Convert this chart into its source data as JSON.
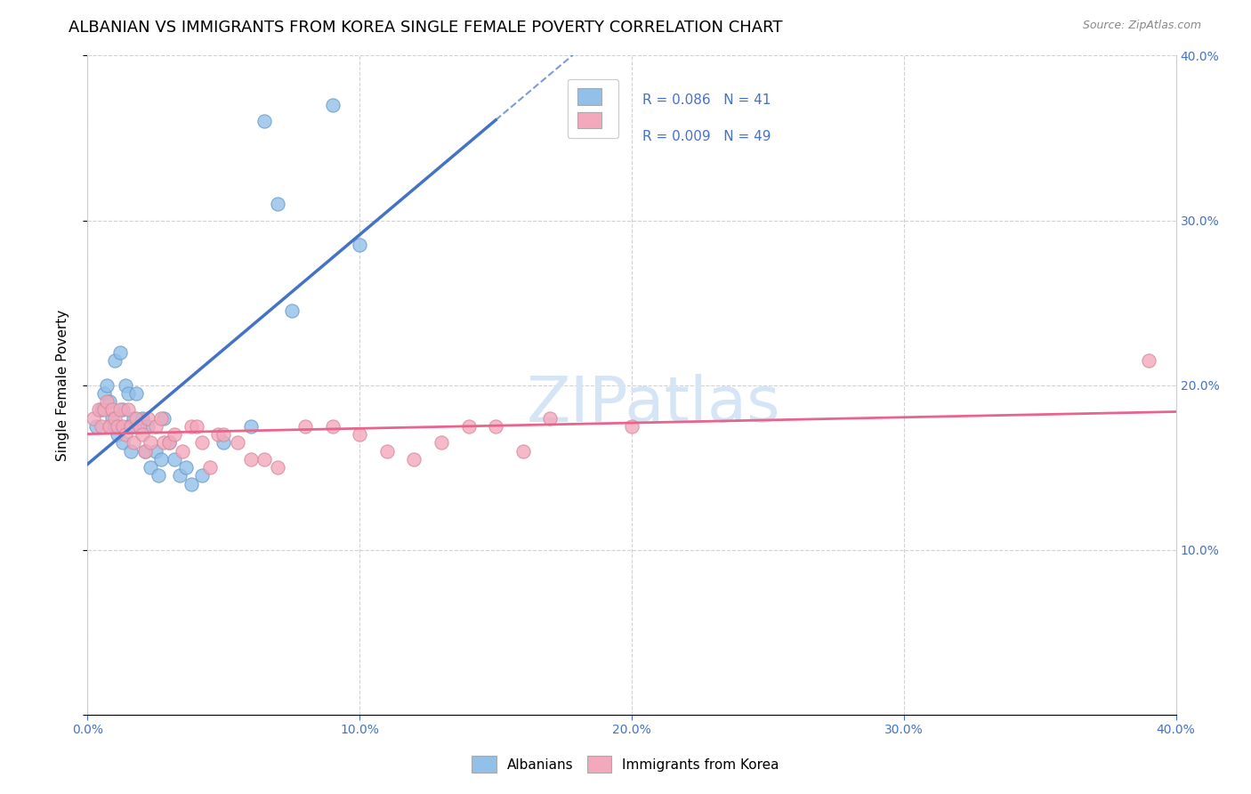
{
  "title": "ALBANIAN VS IMMIGRANTS FROM KOREA SINGLE FEMALE POVERTY CORRELATION CHART",
  "source": "Source: ZipAtlas.com",
  "ylabel": "Single Female Poverty",
  "xlim": [
    0.0,
    0.4
  ],
  "ylim": [
    0.0,
    0.4
  ],
  "legend_r1": "R = 0.086",
  "legend_n1": "N = 41",
  "legend_r2": "R = 0.009",
  "legend_n2": "N = 49",
  "color_albanians": "#92C0E8",
  "color_korea": "#F4A8BC",
  "color_line_albanians": "#4472C4",
  "color_line_korea": "#E8648C",
  "albanians_x": [
    0.003,
    0.005,
    0.006,
    0.007,
    0.008,
    0.008,
    0.009,
    0.01,
    0.01,
    0.011,
    0.012,
    0.013,
    0.013,
    0.014,
    0.015,
    0.015,
    0.016,
    0.017,
    0.018,
    0.019,
    0.02,
    0.021,
    0.022,
    0.023,
    0.025,
    0.026,
    0.027,
    0.028,
    0.03,
    0.032,
    0.034,
    0.036,
    0.038,
    0.042,
    0.05,
    0.06,
    0.065,
    0.07,
    0.075,
    0.09,
    0.1
  ],
  "albanians_y": [
    0.175,
    0.185,
    0.195,
    0.2,
    0.19,
    0.175,
    0.18,
    0.175,
    0.215,
    0.17,
    0.22,
    0.185,
    0.165,
    0.2,
    0.195,
    0.175,
    0.16,
    0.18,
    0.195,
    0.175,
    0.18,
    0.16,
    0.175,
    0.15,
    0.16,
    0.145,
    0.155,
    0.18,
    0.165,
    0.155,
    0.145,
    0.15,
    0.14,
    0.145,
    0.165,
    0.175,
    0.36,
    0.31,
    0.245,
    0.37,
    0.285
  ],
  "korea_x": [
    0.002,
    0.004,
    0.005,
    0.006,
    0.007,
    0.008,
    0.009,
    0.01,
    0.011,
    0.012,
    0.013,
    0.014,
    0.015,
    0.016,
    0.017,
    0.018,
    0.019,
    0.02,
    0.021,
    0.022,
    0.023,
    0.025,
    0.027,
    0.028,
    0.03,
    0.032,
    0.035,
    0.038,
    0.04,
    0.042,
    0.045,
    0.048,
    0.05,
    0.055,
    0.06,
    0.065,
    0.07,
    0.08,
    0.09,
    0.1,
    0.11,
    0.12,
    0.13,
    0.14,
    0.15,
    0.16,
    0.17,
    0.2,
    0.39
  ],
  "korea_y": [
    0.18,
    0.185,
    0.175,
    0.185,
    0.19,
    0.175,
    0.185,
    0.18,
    0.175,
    0.185,
    0.175,
    0.17,
    0.185,
    0.175,
    0.165,
    0.18,
    0.175,
    0.17,
    0.16,
    0.18,
    0.165,
    0.175,
    0.18,
    0.165,
    0.165,
    0.17,
    0.16,
    0.175,
    0.175,
    0.165,
    0.15,
    0.17,
    0.17,
    0.165,
    0.155,
    0.155,
    0.15,
    0.175,
    0.175,
    0.17,
    0.16,
    0.155,
    0.165,
    0.175,
    0.175,
    0.16,
    0.18,
    0.175,
    0.215
  ],
  "background_color": "#FFFFFF",
  "grid_color": "#CCCCCC",
  "title_fontsize": 13,
  "axis_label_color": "#4472C4",
  "watermark_color": "#D5E5F5"
}
